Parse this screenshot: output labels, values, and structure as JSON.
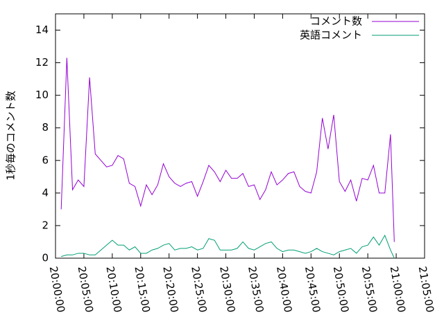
{
  "chart_data": {
    "type": "line",
    "y_label": "1秒毎のコメント数",
    "x": [
      "20:01:00",
      "20:02:00",
      "20:03:00",
      "20:04:00",
      "20:05:00",
      "20:06:00",
      "20:07:00",
      "20:08:00",
      "20:09:00",
      "20:10:00",
      "20:11:00",
      "20:12:00",
      "20:13:00",
      "20:14:00",
      "20:15:00",
      "20:16:00",
      "20:17:00",
      "20:18:00",
      "20:19:00",
      "20:20:00",
      "20:21:00",
      "20:22:00",
      "20:23:00",
      "20:24:00",
      "20:25:00",
      "20:26:00",
      "20:27:00",
      "20:28:00",
      "20:29:00",
      "20:30:00",
      "20:31:00",
      "20:32:00",
      "20:33:00",
      "20:34:00",
      "20:35:00",
      "20:36:00",
      "20:37:00",
      "20:38:00",
      "20:39:00",
      "20:40:00",
      "20:41:00",
      "20:42:00",
      "20:43:00",
      "20:44:00",
      "20:45:00",
      "20:46:00",
      "20:47:00",
      "20:48:00",
      "20:49:00",
      "20:50:00",
      "20:51:00",
      "20:52:00",
      "20:53:00",
      "20:54:00",
      "20:55:00",
      "20:56:00",
      "20:57:00",
      "20:58:00",
      "20:59:00",
      "20:59:40"
    ],
    "series": [
      {
        "name": "コメント数",
        "color": "#9400d3",
        "values": [
          3,
          12.3,
          4.2,
          4.8,
          4.4,
          11.1,
          6.4,
          6,
          5.6,
          5.7,
          6.3,
          6.1,
          4.6,
          4.4,
          3.2,
          4.5,
          3.9,
          4.5,
          5.8,
          5,
          4.6,
          4.4,
          4.6,
          4.7,
          3.8,
          4.7,
          5.7,
          5.3,
          4.7,
          5.4,
          4.9,
          4.9,
          5.2,
          4.4,
          4.5,
          3.6,
          4.2,
          5.3,
          4.5,
          4.8,
          5.2,
          5.3,
          4.4,
          4.1,
          4,
          5.3,
          8.6,
          6.7,
          8.8,
          4.7,
          4.1,
          4.8,
          3.5,
          4.9,
          4.8,
          5.7,
          4,
          4,
          7.6,
          1
        ]
      },
      {
        "name": "英語コメント",
        "color": "#009e73",
        "values": [
          0.1,
          0.2,
          0.2,
          0.3,
          0.3,
          0.2,
          0.2,
          0.5,
          0.8,
          1.1,
          0.8,
          0.8,
          0.5,
          0.7,
          0.3,
          0.3,
          0.5,
          0.6,
          0.8,
          0.9,
          0.5,
          0.6,
          0.6,
          0.7,
          0.5,
          0.6,
          1.2,
          1.1,
          0.5,
          0.5,
          0.5,
          0.6,
          1,
          0.6,
          0.5,
          0.7,
          0.9,
          1,
          0.6,
          0.4,
          0.5,
          0.5,
          0.4,
          0.3,
          0.4,
          0.6,
          0.4,
          0.3,
          0.2,
          0.4,
          0.5,
          0.6,
          0.3,
          0.7,
          0.8,
          1.3,
          0.8,
          1.4,
          0.5,
          0
        ]
      }
    ],
    "xlim": [
      "20:00:00",
      "21:05:00"
    ],
    "xticks": [
      "20:00:00",
      "20:05:00",
      "20:10:00",
      "20:15:00",
      "20:20:00",
      "20:25:00",
      "20:30:00",
      "20:35:00",
      "20:40:00",
      "20:45:00",
      "20:50:00",
      "20:55:00",
      "21:00:00",
      "21:05:00"
    ],
    "ylim": [
      0,
      15
    ],
    "yticks": [
      0,
      2,
      4,
      6,
      8,
      10,
      12,
      14
    ],
    "legend": "top-right",
    "grid": false
  }
}
